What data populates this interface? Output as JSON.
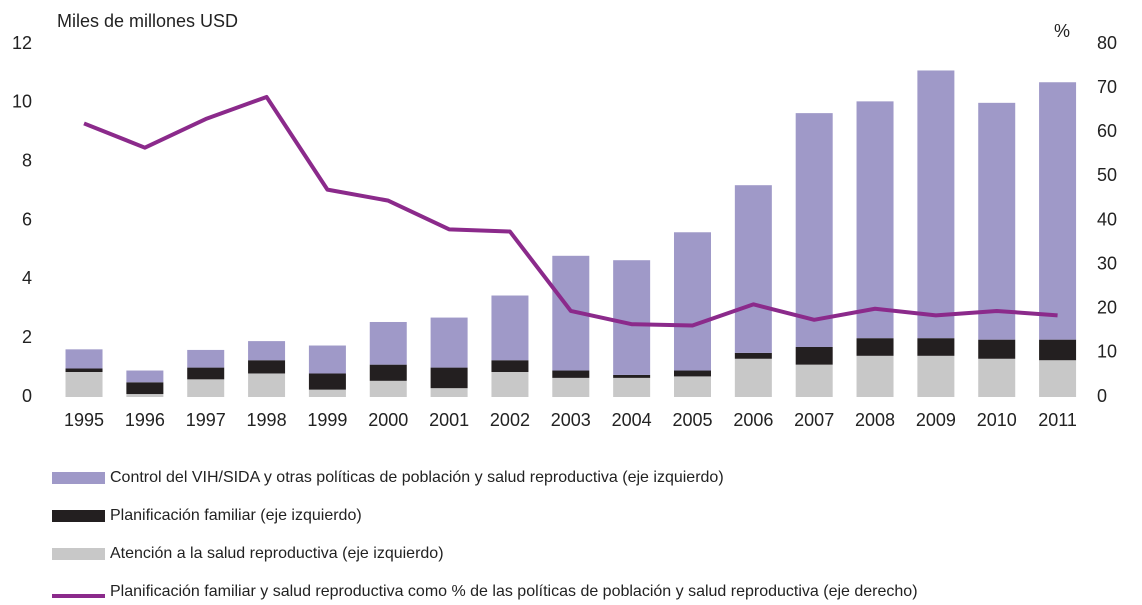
{
  "chart_data": {
    "type": "bar",
    "stacked": true,
    "y_label": "Miles de millones USD",
    "y2_label": "%",
    "categories": [
      "1995",
      "1996",
      "1997",
      "1998",
      "1999",
      "2000",
      "2001",
      "2002",
      "2003",
      "2004",
      "2005",
      "2006",
      "2007",
      "2008",
      "2009",
      "2010",
      "2011"
    ],
    "series": [
      {
        "name": "Atención a la salud reproductiva (eje izquierdo)",
        "color": "#c8c8c8",
        "type": "bar",
        "values": [
          0.85,
          0.1,
          0.6,
          0.8,
          0.25,
          0.55,
          0.3,
          0.85,
          0.65,
          0.65,
          0.7,
          1.3,
          1.1,
          1.4,
          1.4,
          1.3,
          1.25
        ]
      },
      {
        "name": "Planificación familiar (eje izquierdo)",
        "color": "#231f20",
        "type": "bar",
        "values": [
          0.12,
          0.4,
          0.4,
          0.45,
          0.55,
          0.55,
          0.7,
          0.4,
          0.25,
          0.1,
          0.2,
          0.2,
          0.6,
          0.6,
          0.6,
          0.65,
          0.7
        ]
      },
      {
        "name": "Control del VIH/SIDA y otras políticas de población y salud reproductiva (eje izquierdo)",
        "color": "#9f99c8",
        "type": "bar",
        "values": [
          0.65,
          0.4,
          0.6,
          0.65,
          0.95,
          1.45,
          1.7,
          2.2,
          3.9,
          3.9,
          4.7,
          5.7,
          7.95,
          8.05,
          9.1,
          8.05,
          8.75
        ]
      },
      {
        "name": "Planificación familiar y salud reproductiva como % de las políticas de población y salud reproductiva (eje derecho)",
        "color": "#8b2a8b",
        "type": "line",
        "axis": "y2",
        "values": [
          62,
          56.5,
          63,
          68,
          47,
          44.5,
          38,
          37.5,
          19.5,
          16.5,
          16.2,
          21,
          17.5,
          20,
          18.5,
          19.5,
          18.5
        ]
      }
    ],
    "legend_order": [
      2,
      1,
      0,
      3
    ],
    "ylim": [
      0,
      12
    ],
    "yticks": [
      0,
      2,
      4,
      6,
      8,
      10,
      12
    ],
    "y2lim": [
      0,
      80
    ],
    "y2ticks": [
      0,
      10,
      20,
      30,
      40,
      50,
      60,
      70,
      80
    ],
    "grid": false
  }
}
